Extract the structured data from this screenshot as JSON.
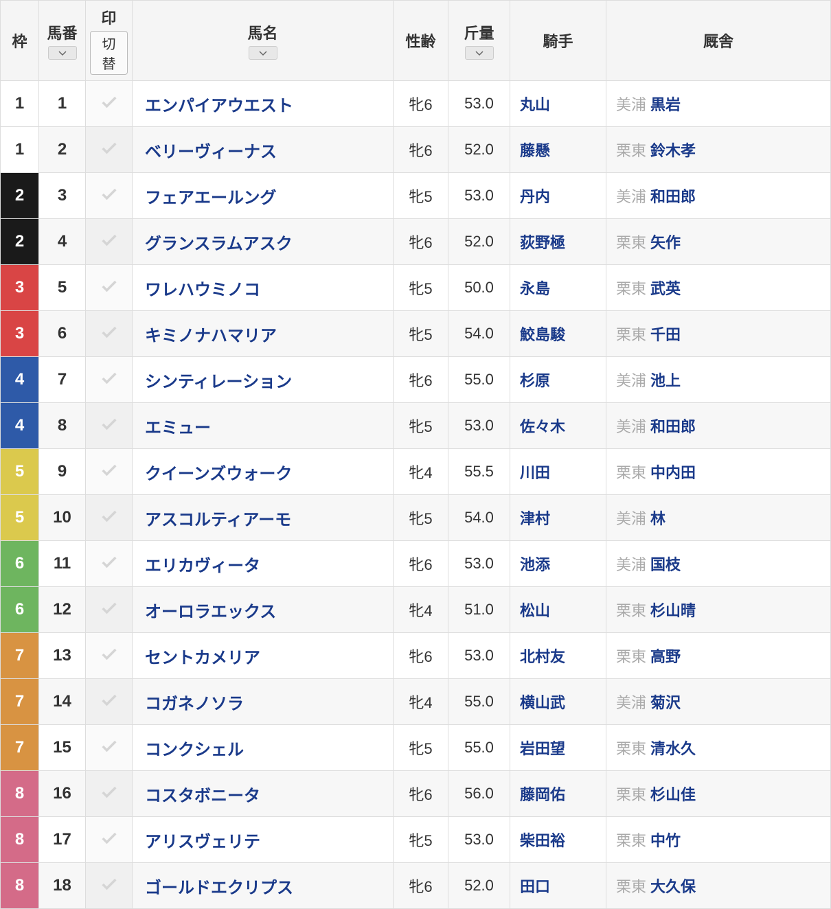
{
  "headers": {
    "waku": "枠",
    "umaban": "馬番",
    "mark": "印",
    "mark_toggle": "切替",
    "horse_name": "馬名",
    "sex_age": "性齢",
    "weight": "斤量",
    "jockey": "騎手",
    "stable": "厩舎"
  },
  "waku_colors": {
    "1": "waku-white",
    "2": "waku-black",
    "3": "waku-red",
    "4": "waku-blue",
    "5": "waku-yellow",
    "6": "waku-green",
    "7": "waku-orange",
    "8": "waku-pink"
  },
  "rows": [
    {
      "waku": "1",
      "uma": "1",
      "name": "エンパイアウエスト",
      "sex_age": "牝6",
      "weight": "53.0",
      "jockey": "丸山",
      "stable_loc": "美浦",
      "stable_name": "黒岩"
    },
    {
      "waku": "1",
      "uma": "2",
      "name": "ベリーヴィーナス",
      "sex_age": "牝6",
      "weight": "52.0",
      "jockey": "藤懸",
      "stable_loc": "栗東",
      "stable_name": "鈴木孝"
    },
    {
      "waku": "2",
      "uma": "3",
      "name": "フェアエールング",
      "sex_age": "牝5",
      "weight": "53.0",
      "jockey": "丹内",
      "stable_loc": "美浦",
      "stable_name": "和田郎"
    },
    {
      "waku": "2",
      "uma": "4",
      "name": "グランスラムアスク",
      "sex_age": "牝6",
      "weight": "52.0",
      "jockey": "荻野極",
      "stable_loc": "栗東",
      "stable_name": "矢作"
    },
    {
      "waku": "3",
      "uma": "5",
      "name": "ワレハウミノコ",
      "sex_age": "牝5",
      "weight": "50.0",
      "jockey": "永島",
      "stable_loc": "栗東",
      "stable_name": "武英"
    },
    {
      "waku": "3",
      "uma": "6",
      "name": "キミノナハマリア",
      "sex_age": "牝5",
      "weight": "54.0",
      "jockey": "鮫島駿",
      "stable_loc": "栗東",
      "stable_name": "千田"
    },
    {
      "waku": "4",
      "uma": "7",
      "name": "シンティレーション",
      "sex_age": "牝6",
      "weight": "55.0",
      "jockey": "杉原",
      "stable_loc": "美浦",
      "stable_name": "池上"
    },
    {
      "waku": "4",
      "uma": "8",
      "name": "エミュー",
      "sex_age": "牝5",
      "weight": "53.0",
      "jockey": "佐々木",
      "stable_loc": "美浦",
      "stable_name": "和田郎"
    },
    {
      "waku": "5",
      "uma": "9",
      "name": "クイーンズウォーク",
      "sex_age": "牝4",
      "weight": "55.5",
      "jockey": "川田",
      "stable_loc": "栗東",
      "stable_name": "中内田"
    },
    {
      "waku": "5",
      "uma": "10",
      "name": "アスコルティアーモ",
      "sex_age": "牝5",
      "weight": "54.0",
      "jockey": "津村",
      "stable_loc": "美浦",
      "stable_name": "林"
    },
    {
      "waku": "6",
      "uma": "11",
      "name": "エリカヴィータ",
      "sex_age": "牝6",
      "weight": "53.0",
      "jockey": "池添",
      "stable_loc": "美浦",
      "stable_name": "国枝"
    },
    {
      "waku": "6",
      "uma": "12",
      "name": "オーロラエックス",
      "sex_age": "牝4",
      "weight": "51.0",
      "jockey": "松山",
      "stable_loc": "栗東",
      "stable_name": "杉山晴"
    },
    {
      "waku": "7",
      "uma": "13",
      "name": "セントカメリア",
      "sex_age": "牝6",
      "weight": "53.0",
      "jockey": "北村友",
      "stable_loc": "栗東",
      "stable_name": "高野"
    },
    {
      "waku": "7",
      "uma": "14",
      "name": "コガネノソラ",
      "sex_age": "牝4",
      "weight": "55.0",
      "jockey": "横山武",
      "stable_loc": "美浦",
      "stable_name": "菊沢"
    },
    {
      "waku": "7",
      "uma": "15",
      "name": "コンクシェル",
      "sex_age": "牝5",
      "weight": "55.0",
      "jockey": "岩田望",
      "stable_loc": "栗東",
      "stable_name": "清水久"
    },
    {
      "waku": "8",
      "uma": "16",
      "name": "コスタボニータ",
      "sex_age": "牝6",
      "weight": "56.0",
      "jockey": "藤岡佑",
      "stable_loc": "栗東",
      "stable_name": "杉山佳"
    },
    {
      "waku": "8",
      "uma": "17",
      "name": "アリスヴェリテ",
      "sex_age": "牝5",
      "weight": "53.0",
      "jockey": "柴田裕",
      "stable_loc": "栗東",
      "stable_name": "中竹"
    },
    {
      "waku": "8",
      "uma": "18",
      "name": "ゴールドエクリプス",
      "sex_age": "牝6",
      "weight": "52.0",
      "jockey": "田口",
      "stable_loc": "栗東",
      "stable_name": "大久保"
    }
  ]
}
